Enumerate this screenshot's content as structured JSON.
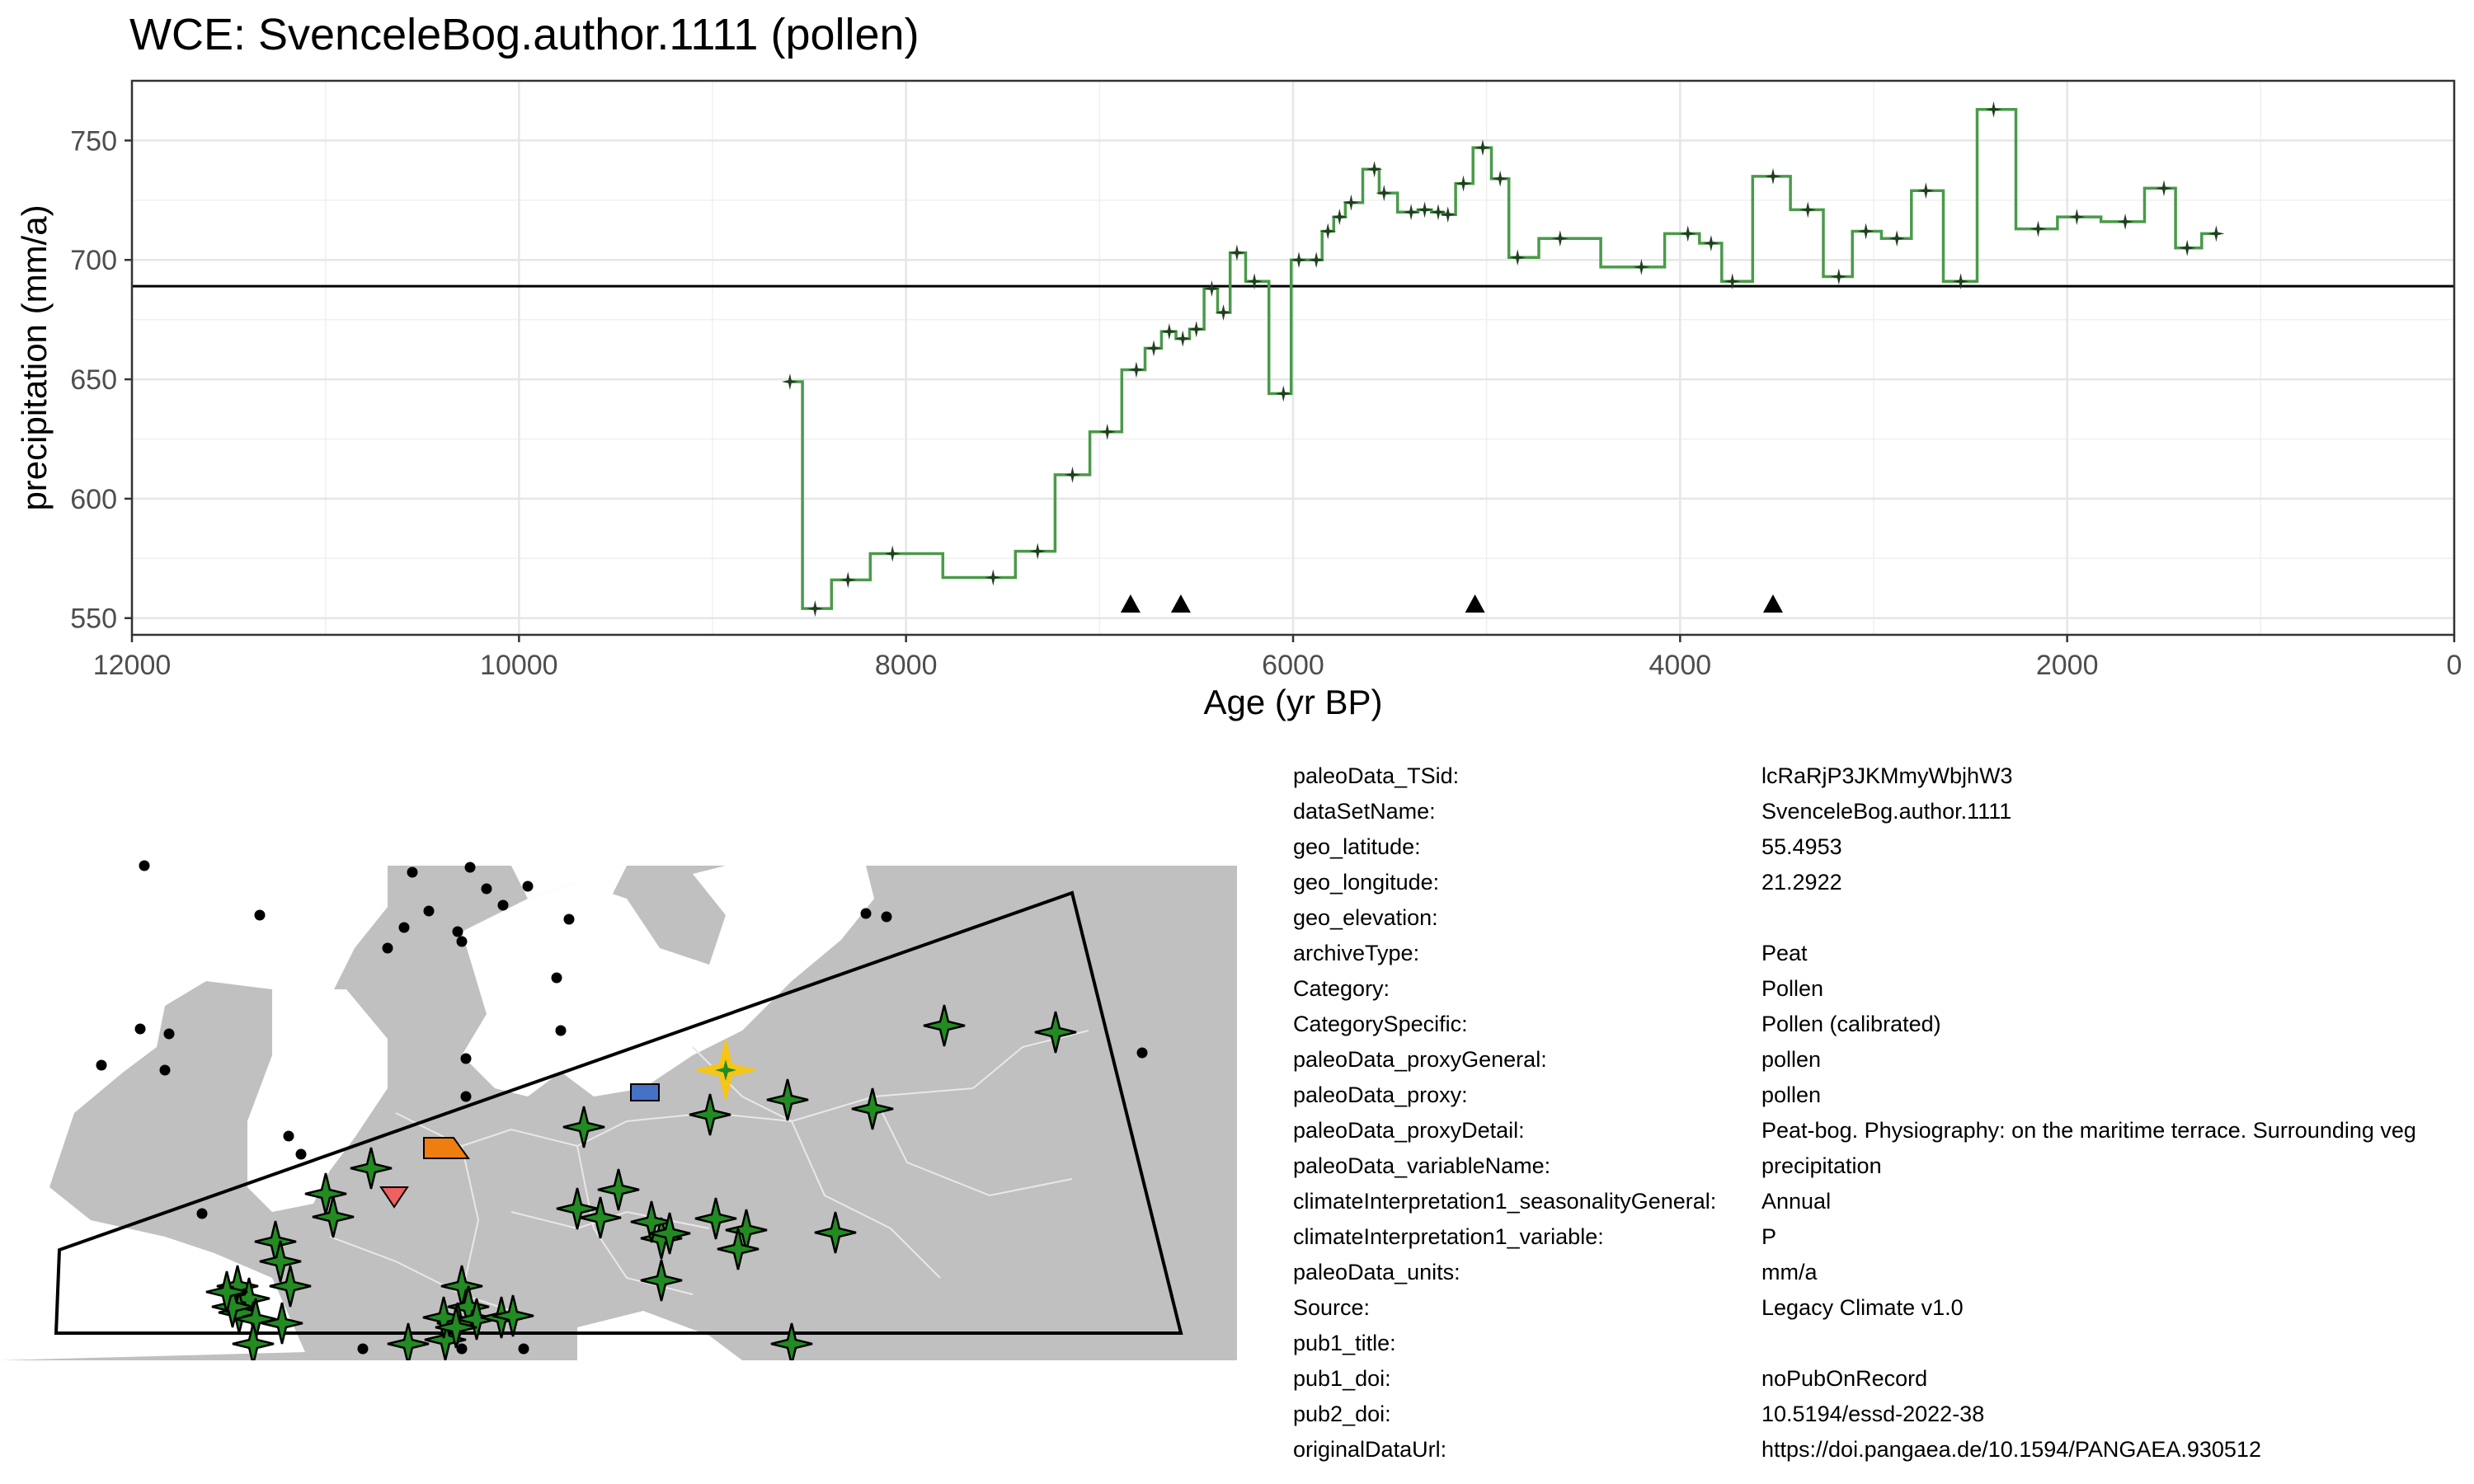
{
  "chart_data": {
    "type": "line",
    "step": true,
    "title": "WCE: SvenceleBog.author.1111 (pollen)",
    "xlabel": "Age (yr BP)",
    "ylabel": "precipitation (mm/a)",
    "xlim": [
      12000,
      0
    ],
    "ylim": [
      543,
      775
    ],
    "x_ticks": [
      12000,
      10000,
      8000,
      6000,
      4000,
      2000,
      0
    ],
    "y_ticks": [
      550,
      600,
      650,
      700,
      750
    ],
    "grid": true,
    "reference_line_y": 689,
    "line_color": "#4a9a4a",
    "marker_color": "#1f3f1f",
    "series": [
      {
        "x": [
          8600,
          8470,
          8300,
          8070,
          7550,
          7320,
          7140,
          6960,
          6810,
          6720,
          6640,
          6570,
          6500,
          6420,
          6360,
          6290,
          6200,
          6050,
          5970,
          5880,
          5820,
          5760,
          5700,
          5580,
          5530,
          5390,
          5320,
          5250,
          5200,
          5120,
          5020,
          4930,
          4840,
          4620,
          4200,
          3960,
          3840,
          3730,
          3520,
          3340,
          3180,
          3040,
          2880,
          2730,
          2550,
          2380,
          2150,
          1950,
          1700,
          1500,
          1380,
          1230
        ],
        "y": [
          649,
          554,
          566,
          577,
          567,
          578,
          610,
          628,
          654,
          663,
          670,
          667,
          671,
          688,
          678,
          703,
          691,
          644,
          700,
          700,
          712,
          718,
          724,
          738,
          728,
          720,
          721,
          720,
          719,
          732,
          747,
          734,
          701,
          709,
          697,
          711,
          707,
          691,
          735,
          721,
          693,
          712,
          709,
          729,
          691,
          763,
          713,
          718,
          716,
          730,
          705,
          711
        ]
      }
    ],
    "triangle_markers_x": [
      6840,
      6580,
      5060,
      3520
    ]
  },
  "map": {
    "land_color": "#c0c0c0",
    "sea_color": "#ffffff",
    "boundary_color": "#e8e8e8",
    "site_star_color": "#228b22",
    "highlight_star_color": "#f5c518",
    "other_marker_colors": [
      "#ef7d0f",
      "#f06060",
      "#4472c4"
    ]
  },
  "metadata": [
    {
      "key": "paleoData_TSid:",
      "value": "lcRaRjP3JKMmyWbjhW3"
    },
    {
      "key": "dataSetName:",
      "value": "SvenceleBog.author.1111"
    },
    {
      "key": "geo_latitude:",
      "value": "55.4953"
    },
    {
      "key": "geo_longitude:",
      "value": "21.2922"
    },
    {
      "key": "geo_elevation:",
      "value": ""
    },
    {
      "key": "archiveType:",
      "value": "Peat"
    },
    {
      "key": "Category:",
      "value": "Pollen"
    },
    {
      "key": "CategorySpecific:",
      "value": "Pollen (calibrated)"
    },
    {
      "key": "paleoData_proxyGeneral:",
      "value": "pollen"
    },
    {
      "key": "paleoData_proxy:",
      "value": "pollen"
    },
    {
      "key": "paleoData_proxyDetail:",
      "value": "Peat-bog. Physiography: on the maritime terrace. Surrounding veg"
    },
    {
      "key": "paleoData_variableName:",
      "value": "precipitation"
    },
    {
      "key": "climateInterpretation1_seasonalityGeneral:",
      "value": "Annual"
    },
    {
      "key": "climateInterpretation1_variable:",
      "value": "P"
    },
    {
      "key": "paleoData_units:",
      "value": "mm/a"
    },
    {
      "key": "Source:",
      "value": "Legacy Climate v1.0"
    },
    {
      "key": "pub1_title:",
      "value": ""
    },
    {
      "key": "pub1_doi:",
      "value": "noPubOnRecord"
    },
    {
      "key": "pub2_doi:",
      "value": "10.5194/essd-2022-38"
    },
    {
      "key": "originalDataUrl:",
      "value": "https://doi.pangaea.de/10.1594/PANGAEA.930512"
    }
  ]
}
